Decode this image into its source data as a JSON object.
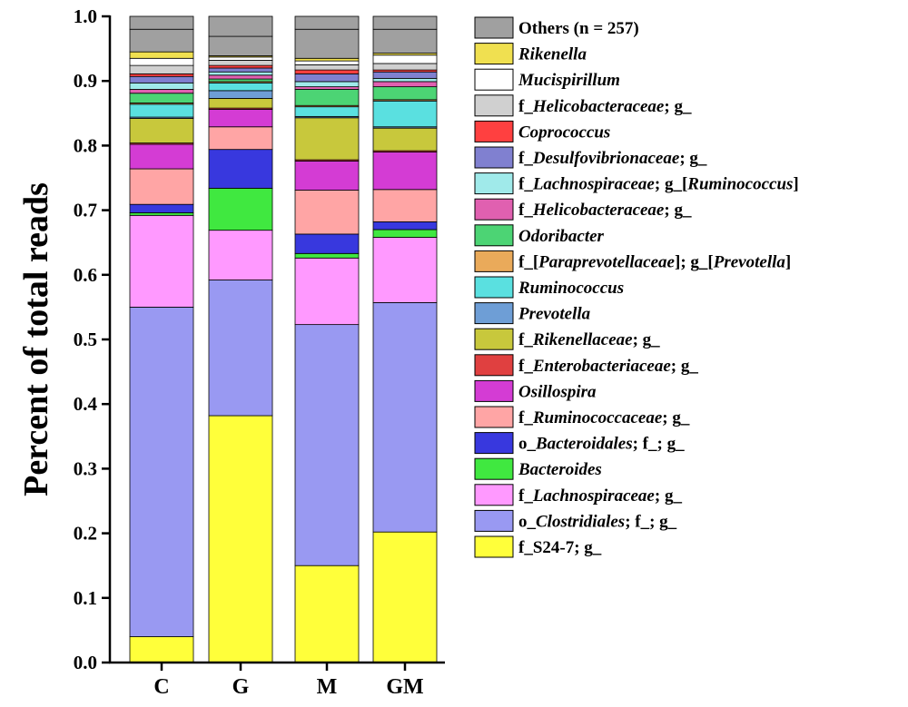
{
  "chart_data": {
    "type": "bar",
    "stacked": true,
    "title": "",
    "xlabel": "",
    "ylabel": "Percent of total reads",
    "ylim": [
      0,
      1.0
    ],
    "yticks": [
      "0.0",
      "0.1",
      "0.2",
      "0.3",
      "0.4",
      "0.5",
      "0.6",
      "0.7",
      "0.8",
      "0.9",
      "1.0"
    ],
    "categories": [
      "C",
      "G",
      "M",
      "GM"
    ],
    "legend_position": "right",
    "series": [
      {
        "name": "f_S24-7; g_",
        "color": "#ffff3a",
        "segments": [
          {
            "t": "f_S24-7; g_",
            "i": false
          }
        ],
        "values": [
          0.04,
          0.382,
          0.15,
          0.202
        ]
      },
      {
        "name": "o_Clostridiales; f_; g_",
        "color": "#9999f2",
        "segments": [
          {
            "t": "o_",
            "i": false
          },
          {
            "t": "Clostridiales",
            "i": true
          },
          {
            "t": "; f_; g_",
            "i": false
          }
        ],
        "values": [
          0.51,
          0.21,
          0.373,
          0.355
        ]
      },
      {
        "name": "f_Lachnospiraceae; g_",
        "color": "#ff99ff",
        "segments": [
          {
            "t": "f_",
            "i": false
          },
          {
            "t": "Lachnospiraceae",
            "i": true
          },
          {
            "t": "; g_",
            "i": false
          }
        ],
        "values": [
          0.142,
          0.077,
          0.103,
          0.101
        ]
      },
      {
        "name": "Bacteroides",
        "color": "#40e840",
        "segments": [
          {
            "t": "Bacteroides",
            "i": true
          }
        ],
        "values": [
          0.004,
          0.065,
          0.007,
          0.012
        ]
      },
      {
        "name": "o_Bacteroidales; f_; g_",
        "color": "#3838de",
        "segments": [
          {
            "t": "o_",
            "i": false
          },
          {
            "t": "Bacteroidales",
            "i": true
          },
          {
            "t": "; f_; g_",
            "i": false
          }
        ],
        "values": [
          0.013,
          0.06,
          0.03,
          0.012
        ]
      },
      {
        "name": "f_Ruminococcaceae; g_",
        "color": "#ffa5a5",
        "segments": [
          {
            "t": "f_",
            "i": false
          },
          {
            "t": "Ruminococcaceae",
            "i": true
          },
          {
            "t": "; g_",
            "i": false
          }
        ],
        "values": [
          0.055,
          0.035,
          0.068,
          0.05
        ]
      },
      {
        "name": "Osillospira",
        "color": "#d43cd4",
        "segments": [
          {
            "t": "Osillospira",
            "i": true
          }
        ],
        "values": [
          0.038,
          0.027,
          0.045,
          0.058
        ]
      },
      {
        "name": "f_Enterobacteriaceae; g_",
        "color": "#e04040",
        "segments": [
          {
            "t": "f_",
            "i": false
          },
          {
            "t": "Enterobacteriaceae",
            "i": true
          },
          {
            "t": "; g_",
            "i": false
          }
        ],
        "values": [
          0.002,
          0.002,
          0.002,
          0.002
        ]
      },
      {
        "name": "f_Rikenellaceae; g_",
        "color": "#c8c83c",
        "segments": [
          {
            "t": "f_",
            "i": false
          },
          {
            "t": "Rikenellaceae",
            "i": true
          },
          {
            "t": "; g_",
            "i": false
          }
        ],
        "values": [
          0.038,
          0.015,
          0.065,
          0.035
        ]
      },
      {
        "name": "Prevotella",
        "color": "#6e9ed6",
        "segments": [
          {
            "t": "Prevotella",
            "i": true
          }
        ],
        "values": [
          0.002,
          0.012,
          0.002,
          0.002
        ]
      },
      {
        "name": "Ruminococcus",
        "color": "#5ae0e0",
        "segments": [
          {
            "t": "Ruminococcus",
            "i": true
          }
        ],
        "values": [
          0.02,
          0.012,
          0.015,
          0.04
        ]
      },
      {
        "name": "f_[Paraprevotellaceae]; g_[Prevotella]",
        "color": "#eaaa5a",
        "segments": [
          {
            "t": "f_[",
            "i": false
          },
          {
            "t": "Paraprevotellaceae",
            "i": true
          },
          {
            "t": "]; g_[",
            "i": false
          },
          {
            "t": "Prevotella",
            "i": true
          },
          {
            "t": "]",
            "i": false
          }
        ],
        "values": [
          0.002,
          0.002,
          0.002,
          0.002
        ]
      },
      {
        "name": "Odoribacter",
        "color": "#4cd474",
        "segments": [
          {
            "t": "Odoribacter",
            "i": true
          }
        ],
        "values": [
          0.015,
          0.004,
          0.025,
          0.02
        ]
      },
      {
        "name": "f_Helicobacteraceae; g_",
        "color": "#e060b0",
        "segments": [
          {
            "t": "f_",
            "i": false
          },
          {
            "t": "Helicobacteraceae",
            "i": true
          },
          {
            "t": "; g_",
            "i": false
          }
        ],
        "values": [
          0.006,
          0.006,
          0.004,
          0.008
        ]
      },
      {
        "name": "f_Lachnospiraceae; g_[Ruminococcus]",
        "color": "#a0eaea",
        "segments": [
          {
            "t": "f_",
            "i": false
          },
          {
            "t": "Lachnospiraceae",
            "i": true
          },
          {
            "t": "; g_[",
            "i": false
          },
          {
            "t": "Ruminococcus",
            "i": true
          },
          {
            "t": "]",
            "i": false
          }
        ],
        "values": [
          0.01,
          0.005,
          0.008,
          0.005
        ]
      },
      {
        "name": "f_Desulfovibrionaceae; g_",
        "color": "#8080d0",
        "segments": [
          {
            "t": "f_",
            "i": false
          },
          {
            "t": "Desulfovibrionaceae",
            "i": true
          },
          {
            "t": "; g_",
            "i": false
          }
        ],
        "values": [
          0.01,
          0.006,
          0.012,
          0.01
        ]
      },
      {
        "name": "Coprococcus",
        "color": "#ff4040",
        "segments": [
          {
            "t": "Coprococcus",
            "i": true
          }
        ],
        "values": [
          0.004,
          0.004,
          0.006,
          0.003
        ]
      },
      {
        "name": "f_Helicobacteraceae; g_",
        "color": "#d0d0d0",
        "segments": [
          {
            "t": "f_",
            "i": false
          },
          {
            "t": "Helicobacteraceae",
            "i": true
          },
          {
            "t": "; g_",
            "i": false
          }
        ],
        "values": [
          0.013,
          0.008,
          0.008,
          0.01
        ]
      },
      {
        "name": "Mucispirillum",
        "color": "#ffffff",
        "segments": [
          {
            "t": "Mucispirillum",
            "i": true
          }
        ],
        "values": [
          0.011,
          0.005,
          0.006,
          0.013
        ]
      },
      {
        "name": "Rikenella",
        "color": "#f0e050",
        "segments": [
          {
            "t": "Rikenella",
            "i": true
          }
        ],
        "values": [
          0.01,
          0.002,
          0.004,
          0.003
        ]
      },
      {
        "name": "Others (n = 257)",
        "color": "#a0a0a0",
        "segments": [
          {
            "t": "Others (n = 257)",
            "i": false
          }
        ],
        "values": [
          0.035,
          0.03,
          0.045,
          0.037
        ]
      }
    ]
  }
}
